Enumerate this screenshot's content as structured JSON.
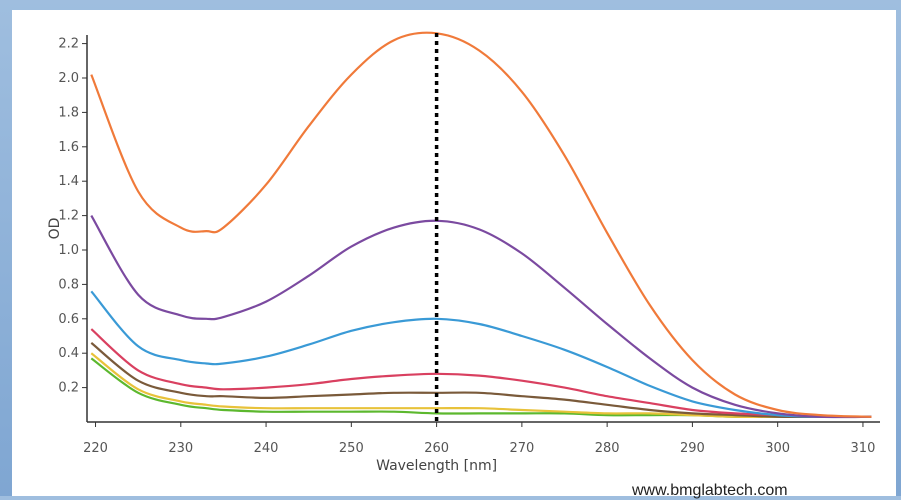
{
  "chart_data": {
    "type": "line",
    "xlabel": "Wavelength [nm]",
    "ylabel": "OD",
    "xlim": [
      219,
      312
    ],
    "ylim": [
      0,
      2.25
    ],
    "x_ticks": [
      220,
      230,
      240,
      250,
      260,
      270,
      280,
      290,
      300,
      310
    ],
    "y_ticks": [
      0.2,
      0.4,
      0.6,
      0.8,
      1.0,
      1.2,
      1.4,
      1.6,
      1.8,
      2.0,
      2.2
    ],
    "y_tick_labels": [
      "0.2",
      "0.4",
      "0.6",
      "0.8",
      "1.0",
      "1.2",
      "1.4",
      "1.6",
      "1.8",
      "2.0",
      "2.2"
    ],
    "grid": false,
    "reference_line": {
      "x": 260,
      "style": "dotted",
      "color": "#000000"
    },
    "x": [
      219.5,
      225,
      230,
      233,
      235,
      240,
      245,
      250,
      255,
      260,
      265,
      270,
      275,
      280,
      285,
      290,
      295,
      300,
      305,
      311
    ],
    "series": [
      {
        "color": "#f07a3a",
        "values": [
          2.02,
          1.34,
          1.13,
          1.11,
          1.13,
          1.38,
          1.72,
          2.02,
          2.22,
          2.26,
          2.16,
          1.92,
          1.55,
          1.1,
          0.68,
          0.36,
          0.16,
          0.07,
          0.04,
          0.03
        ]
      },
      {
        "color": "#7b4aa0",
        "values": [
          1.2,
          0.74,
          0.62,
          0.6,
          0.61,
          0.7,
          0.85,
          1.02,
          1.13,
          1.17,
          1.12,
          0.98,
          0.78,
          0.57,
          0.37,
          0.2,
          0.1,
          0.05,
          0.03,
          0.03
        ]
      },
      {
        "color": "#3a9ad6",
        "values": [
          0.76,
          0.44,
          0.36,
          0.34,
          0.34,
          0.38,
          0.45,
          0.53,
          0.58,
          0.6,
          0.57,
          0.5,
          0.42,
          0.32,
          0.21,
          0.12,
          0.07,
          0.04,
          0.03,
          0.03
        ]
      },
      {
        "color": "#d94060",
        "values": [
          0.54,
          0.3,
          0.22,
          0.2,
          0.19,
          0.2,
          0.22,
          0.25,
          0.27,
          0.28,
          0.27,
          0.24,
          0.2,
          0.15,
          0.11,
          0.07,
          0.05,
          0.04,
          0.03,
          0.03
        ]
      },
      {
        "color": "#7a5a3a",
        "values": [
          0.46,
          0.24,
          0.17,
          0.15,
          0.15,
          0.14,
          0.15,
          0.16,
          0.17,
          0.17,
          0.17,
          0.15,
          0.13,
          0.1,
          0.07,
          0.05,
          0.04,
          0.03,
          0.03,
          0.03
        ]
      },
      {
        "color": "#e8c23a",
        "values": [
          0.4,
          0.19,
          0.12,
          0.1,
          0.09,
          0.08,
          0.08,
          0.08,
          0.08,
          0.08,
          0.08,
          0.07,
          0.06,
          0.05,
          0.05,
          0.04,
          0.03,
          0.03,
          0.03,
          0.03
        ]
      },
      {
        "color": "#5cb82e",
        "values": [
          0.37,
          0.17,
          0.1,
          0.08,
          0.07,
          0.06,
          0.06,
          0.06,
          0.06,
          0.05,
          0.05,
          0.05,
          0.05,
          0.04,
          0.04,
          0.04,
          0.03,
          0.03,
          0.03,
          0.03
        ]
      }
    ]
  },
  "watermark": "www.bmglabtech.com"
}
